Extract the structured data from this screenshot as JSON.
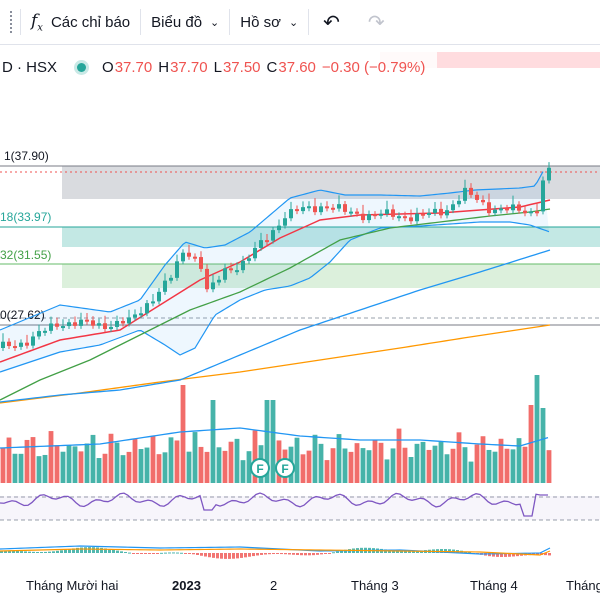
{
  "toolbar": {
    "indicators_label": "Các chỉ báo",
    "chart_type_label": "Biểu đồ",
    "profile_label": "Hồ sơ"
  },
  "legend": {
    "symbol": "D · HSX",
    "open_label": "O",
    "open": "37.70",
    "high_label": "H",
    "high": "37.70",
    "low_label": "L",
    "low": "37.50",
    "close_label": "C",
    "close": "37.60",
    "change": "−0.30 (−0.79%)"
  },
  "levels": [
    "1(37.90)",
    "18(33.97)",
    "32(31.55)",
    "0(27.62)"
  ],
  "x_axis": [
    "Tháng Mười hai",
    "2023",
    "2",
    "Tháng 3",
    "Tháng 4",
    "Tháng"
  ],
  "markers": [
    "F",
    "F"
  ],
  "colors": {
    "up": "#26a69a",
    "down": "#ef5350",
    "bb": "#2196f3",
    "ma_red": "#f23645",
    "ma_green": "#43a047",
    "ma_orange": "#ff9800",
    "rsi": "#7e57c2"
  },
  "chart_data": {
    "type": "candlestick",
    "symbol": "D · HSX",
    "fib_levels": [
      37.9,
      33.97,
      31.55,
      27.62
    ],
    "last_candle": {
      "open": 37.7,
      "high": 37.7,
      "low": 37.5,
      "close": 37.6
    }
  }
}
